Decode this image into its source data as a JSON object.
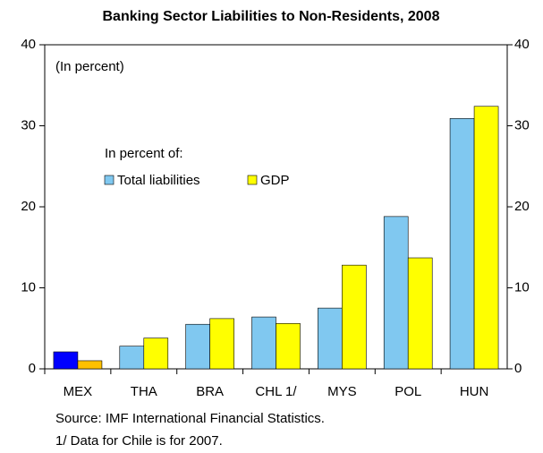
{
  "chart_data": {
    "type": "bar",
    "title": "Banking Sector Liabilities to Non-Residents, 2008",
    "annotation": "(In percent)",
    "legend_title": "In percent of:",
    "categories": [
      "MEX",
      "THA",
      "BRA",
      "CHL 1/",
      "MYS",
      "POL",
      "HUN"
    ],
    "series": [
      {
        "name": "Total liabilities",
        "color": "#80c8f0",
        "colors": [
          "#0000ff",
          "#80c8f0",
          "#80c8f0",
          "#80c8f0",
          "#80c8f0",
          "#80c8f0",
          "#80c8f0"
        ],
        "values": [
          2.1,
          2.8,
          5.5,
          6.4,
          7.5,
          18.8,
          30.9
        ]
      },
      {
        "name": "GDP",
        "color": "#ffff00",
        "colors": [
          "#ffc000",
          "#ffff00",
          "#ffff00",
          "#ffff00",
          "#ffff00",
          "#ffff00",
          "#ffff00"
        ],
        "values": [
          1.0,
          3.8,
          6.2,
          5.6,
          12.8,
          13.7,
          32.4
        ]
      }
    ],
    "ylim": [
      0,
      40
    ],
    "yticks": [
      0,
      10,
      20,
      30,
      40
    ],
    "y2lim": [
      0,
      40
    ],
    "y2ticks": [
      0,
      10,
      20,
      30,
      40
    ],
    "notes": [
      "Source: IMF International Financial Statistics.",
      "1/ Data for Chile is for 2007."
    ]
  }
}
